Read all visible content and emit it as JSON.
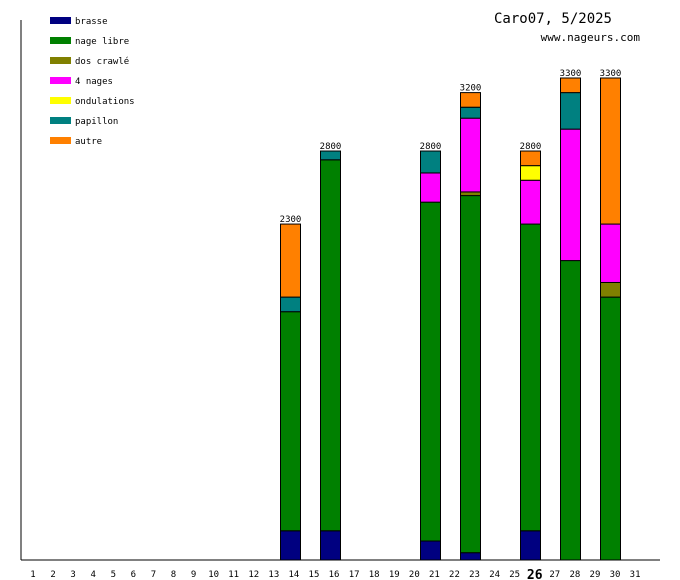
{
  "title": "Caro07, 5/2025",
  "site": "www.nageurs.com",
  "chart_data": {
    "type": "bar",
    "stacked": true,
    "title": "Caro07, 5/2025",
    "xlabel": "",
    "ylabel": "",
    "ylim": [
      0,
      3300
    ],
    "highlight_day": 26,
    "legend_position": "top-left",
    "days": [
      1,
      2,
      3,
      4,
      5,
      6,
      7,
      8,
      9,
      10,
      11,
      12,
      13,
      14,
      15,
      16,
      17,
      18,
      19,
      20,
      21,
      22,
      23,
      24,
      25,
      26,
      27,
      28,
      29,
      30,
      31
    ],
    "series": [
      {
        "name": "brasse",
        "color": "#000080"
      },
      {
        "name": "nage libre",
        "color": "#008000"
      },
      {
        "name": "dos crawlé",
        "color": "#808000"
      },
      {
        "name": "4 nages",
        "color": "#ff00ff"
      },
      {
        "name": "ondulations",
        "color": "#ffff00"
      },
      {
        "name": "papillon",
        "color": "#008080"
      },
      {
        "name": "autre",
        "color": "#ff8000"
      }
    ],
    "bars": [
      {
        "day": 14,
        "total": "2300",
        "values": [
          200,
          1500,
          0,
          0,
          0,
          100,
          500
        ]
      },
      {
        "day": 16,
        "total": "2800",
        "values": [
          200,
          2540,
          0,
          0,
          0,
          60,
          0
        ]
      },
      {
        "day": 21,
        "total": "2800",
        "values": [
          130,
          2320,
          0,
          200,
          0,
          150,
          0
        ]
      },
      {
        "day": 23,
        "total": "3200",
        "values": [
          50,
          2445,
          25,
          505,
          0,
          75,
          100
        ]
      },
      {
        "day": 26,
        "total": "2800",
        "values": [
          200,
          2100,
          0,
          300,
          100,
          0,
          100
        ]
      },
      {
        "day": 28,
        "total": "3300",
        "values": [
          0,
          2050,
          0,
          900,
          0,
          250,
          100
        ]
      },
      {
        "day": 30,
        "total": "3300",
        "values": [
          0,
          1800,
          100,
          400,
          0,
          0,
          1000
        ]
      }
    ]
  }
}
